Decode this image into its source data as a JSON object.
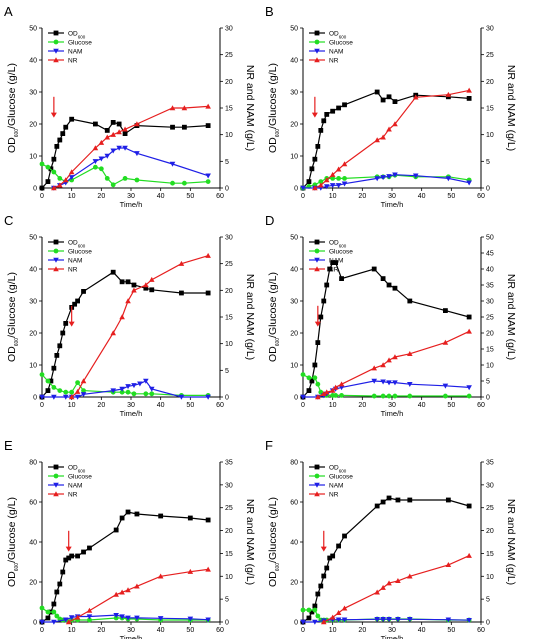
{
  "colors": {
    "od": "#000000",
    "glucose": "#22dd22",
    "nam": "#1f1fe6",
    "nr": "#e61f1f",
    "arrow": "#e61f1f"
  },
  "legend": {
    "od": "OD",
    "od_sub": "600",
    "glucose": "Glucose",
    "nam": "NAM",
    "nr": "NR"
  },
  "axis_text": {
    "y_left": "OD",
    "y_left_sub": "600",
    "y_left_rest": "/Glucose (g/L)",
    "y_right": "NR and NAM (g/L)",
    "x": "Time/h"
  },
  "chart_data": [
    {
      "type": "line",
      "panel": "A",
      "xlim": [
        0,
        60
      ],
      "xticks": [
        0,
        10,
        20,
        30,
        40,
        50,
        60
      ],
      "ylim_left": [
        0,
        50
      ],
      "yticks_left": [
        0,
        10,
        20,
        30,
        40,
        50
      ],
      "ylim_right": [
        0,
        30
      ],
      "yticks_right": [
        0,
        5,
        10,
        15,
        20,
        25,
        30
      ],
      "arrow_x": 4,
      "series": [
        {
          "name": "OD600",
          "axis": "left",
          "x": [
            0,
            2,
            3,
            4,
            5,
            6,
            7,
            8,
            10,
            18,
            22,
            24,
            26,
            28,
            32,
            44,
            48,
            56
          ],
          "y": [
            0,
            2,
            6,
            9,
            13,
            15,
            17,
            19,
            21.5,
            20,
            18,
            20.5,
            20,
            17,
            19.5,
            19,
            19,
            19.5
          ]
        },
        {
          "name": "Glucose",
          "axis": "left",
          "x": [
            0,
            2,
            4,
            6,
            8,
            10,
            18,
            20,
            22,
            24,
            28,
            32,
            44,
            48,
            56
          ],
          "y": [
            7.5,
            6.5,
            5,
            3,
            2,
            2.5,
            6.5,
            6,
            3,
            1,
            3,
            2.5,
            1.5,
            1.5,
            2
          ]
        },
        {
          "name": "NAM",
          "axis": "right",
          "x": [
            4,
            6,
            8,
            10,
            18,
            20,
            22,
            24,
            26,
            28,
            32,
            44,
            56
          ],
          "y": [
            0,
            0.5,
            1,
            2,
            5,
            5.5,
            6,
            7,
            7.5,
            7.5,
            6.5,
            4.5,
            2.3
          ]
        },
        {
          "name": "NR",
          "axis": "right",
          "x": [
            4,
            6,
            8,
            10,
            18,
            20,
            22,
            24,
            26,
            28,
            32,
            44,
            48,
            56
          ],
          "y": [
            0,
            0.5,
            1.5,
            3,
            7.5,
            8.5,
            9.5,
            10,
            10.5,
            11,
            12,
            15,
            15,
            15.3
          ]
        }
      ]
    },
    {
      "type": "line",
      "panel": "B",
      "xlim": [
        0,
        60
      ],
      "xticks": [
        0,
        10,
        20,
        30,
        40,
        50,
        60
      ],
      "ylim_left": [
        0,
        50
      ],
      "yticks_left": [
        0,
        10,
        20,
        30,
        40,
        50
      ],
      "ylim_right": [
        0,
        30
      ],
      "yticks_right": [
        0,
        5,
        10,
        15,
        20,
        25,
        30
      ],
      "arrow_x": 4,
      "series": [
        {
          "name": "OD600",
          "axis": "left",
          "x": [
            0,
            2,
            3,
            4,
            5,
            6,
            7,
            8,
            10,
            12,
            14,
            25,
            27,
            29,
            31,
            38,
            49,
            56
          ],
          "y": [
            0,
            2,
            6,
            9,
            13,
            18,
            21,
            23,
            24,
            25,
            26,
            30,
            27.5,
            28.5,
            27,
            29,
            28.5,
            28
          ]
        },
        {
          "name": "Glucose",
          "axis": "left",
          "x": [
            0,
            2,
            4,
            6,
            8,
            10,
            12,
            14,
            25,
            27,
            29,
            31,
            38,
            49,
            56
          ],
          "y": [
            0,
            0.5,
            1,
            2,
            3,
            3,
            3,
            3,
            3.5,
            3.5,
            3.5,
            4,
            3.5,
            3.5,
            2.5
          ]
        },
        {
          "name": "NAM",
          "axis": "right",
          "x": [
            0,
            4,
            6,
            8,
            10,
            12,
            14,
            25,
            27,
            29,
            31,
            38,
            49,
            56
          ],
          "y": [
            0,
            0,
            0,
            0.3,
            0.5,
            0.5,
            0.8,
            1.8,
            2,
            2.2,
            2.5,
            2.3,
            1.8,
            1
          ]
        },
        {
          "name": "NR",
          "axis": "right",
          "x": [
            4,
            6,
            8,
            10,
            12,
            14,
            25,
            27,
            29,
            31,
            38,
            49,
            56
          ],
          "y": [
            0,
            0.5,
            1.5,
            2.5,
            3.5,
            4.5,
            9,
            9.5,
            11,
            12,
            17,
            17.5,
            18.3
          ]
        }
      ]
    },
    {
      "type": "line",
      "panel": "C",
      "xlim": [
        0,
        60
      ],
      "xticks": [
        0,
        10,
        20,
        30,
        40,
        50,
        60
      ],
      "ylim_left": [
        0,
        50
      ],
      "yticks_left": [
        0,
        10,
        20,
        30,
        40,
        50
      ],
      "ylim_right": [
        0,
        30
      ],
      "yticks_right": [
        0,
        5,
        10,
        15,
        20,
        25,
        30
      ],
      "arrow_x": 10,
      "series": [
        {
          "name": "OD600",
          "axis": "left",
          "x": [
            0,
            2,
            3,
            4,
            5,
            6,
            7,
            8,
            10,
            11,
            12,
            14,
            24,
            27,
            29,
            31,
            35,
            37,
            47,
            56
          ],
          "y": [
            0,
            2,
            5,
            9,
            13,
            16,
            20,
            23,
            28,
            29,
            30,
            33,
            39,
            36,
            36,
            35,
            34,
            33.5,
            32.5,
            32.5
          ]
        },
        {
          "name": "Glucose",
          "axis": "left",
          "x": [
            0,
            2,
            4,
            6,
            8,
            10,
            12,
            14,
            24,
            27,
            29,
            31,
            35,
            37,
            47,
            56
          ],
          "y": [
            7,
            5,
            3,
            2,
            1.5,
            1.5,
            4.5,
            2,
            1.5,
            1.5,
            1.5,
            1,
            1,
            1,
            0.5,
            0.5
          ]
        },
        {
          "name": "NAM",
          "axis": "right",
          "x": [
            0,
            4,
            8,
            10,
            12,
            14,
            24,
            27,
            29,
            31,
            33,
            35,
            37,
            47,
            56
          ],
          "y": [
            0,
            0,
            0,
            0,
            0,
            0.5,
            1.2,
            1.5,
            2,
            2.2,
            2.5,
            3,
            1.5,
            0,
            0
          ]
        },
        {
          "name": "NR",
          "axis": "right",
          "x": [
            10,
            12,
            14,
            24,
            27,
            29,
            31,
            35,
            37,
            47,
            56
          ],
          "y": [
            0,
            1,
            3,
            12,
            15,
            18,
            20,
            21,
            22,
            25,
            26.5
          ]
        }
      ]
    },
    {
      "type": "line",
      "panel": "D",
      "xlim": [
        0,
        60
      ],
      "xticks": [
        0,
        10,
        20,
        30,
        40,
        50,
        60
      ],
      "ylim_left": [
        0,
        50
      ],
      "yticks_left": [
        0,
        10,
        20,
        30,
        40,
        50
      ],
      "ylim_right": [
        0,
        50
      ],
      "yticks_right": [
        0,
        5,
        10,
        15,
        20,
        25,
        30,
        35,
        40,
        45,
        50
      ],
      "arrow_x": 5,
      "series": [
        {
          "name": "OD600",
          "axis": "left",
          "x": [
            0,
            2,
            3,
            4,
            5,
            6,
            7,
            8,
            9,
            10,
            11,
            13,
            24,
            27,
            29,
            31,
            36,
            48,
            56
          ],
          "y": [
            0,
            2,
            5,
            10,
            17,
            25,
            30,
            35,
            40,
            42,
            42,
            37,
            40,
            37,
            35,
            34,
            30,
            27,
            25
          ]
        },
        {
          "name": "Glucose",
          "axis": "left",
          "x": [
            0,
            2,
            4,
            5,
            6,
            7,
            8,
            10,
            11,
            13,
            24,
            27,
            29,
            31,
            36,
            48,
            56
          ],
          "y": [
            7,
            6,
            6,
            4,
            1.5,
            0.8,
            0.5,
            0.5,
            0.5,
            0.5,
            0.3,
            0.3,
            0.3,
            0.3,
            0.3,
            0.3,
            0.3
          ]
        },
        {
          "name": "NAM",
          "axis": "right",
          "x": [
            0,
            5,
            7,
            8,
            10,
            11,
            13,
            24,
            27,
            29,
            31,
            36,
            48,
            56
          ],
          "y": [
            0,
            0,
            0.5,
            1,
            2,
            2.5,
            3,
            5,
            4.8,
            4.5,
            4.5,
            4,
            3.5,
            3
          ]
        },
        {
          "name": "NR",
          "axis": "right",
          "x": [
            5,
            7,
            8,
            10,
            11,
            13,
            24,
            27,
            29,
            31,
            36,
            48,
            56
          ],
          "y": [
            0,
            1,
            1.5,
            2,
            3,
            4,
            9,
            10,
            11.5,
            12.5,
            13.5,
            17,
            20.5
          ]
        }
      ]
    },
    {
      "type": "line",
      "panel": "E",
      "xlim": [
        0,
        60
      ],
      "xticks": [
        0,
        10,
        20,
        30,
        40,
        50,
        60
      ],
      "ylim_left": [
        0,
        80
      ],
      "yticks_left": [
        0,
        20,
        40,
        60,
        80
      ],
      "ylim_right": [
        0,
        35
      ],
      "yticks_right": [
        0,
        5,
        10,
        15,
        20,
        25,
        30,
        35
      ],
      "arrow_x": 9,
      "series": [
        {
          "name": "OD600",
          "axis": "left",
          "x": [
            0,
            2,
            3,
            4,
            5,
            6,
            7,
            8,
            9,
            10,
            12,
            14,
            16,
            25,
            27,
            29,
            32,
            40,
            50,
            56
          ],
          "y": [
            0,
            2,
            5,
            9,
            15,
            19,
            25,
            31,
            32,
            33,
            33,
            35,
            37,
            46,
            52,
            55,
            54,
            53,
            52,
            51
          ]
        },
        {
          "name": "Glucose",
          "axis": "left",
          "x": [
            0,
            2,
            4,
            5,
            6,
            7,
            8,
            10,
            12,
            16,
            25,
            27,
            29,
            32,
            40,
            50,
            56
          ],
          "y": [
            7,
            5,
            5,
            3,
            1.5,
            1,
            1,
            1,
            1,
            1,
            2,
            2,
            1.5,
            1.5,
            1,
            1,
            1
          ]
        },
        {
          "name": "NAM",
          "axis": "right",
          "x": [
            0,
            4,
            8,
            10,
            12,
            16,
            25,
            27,
            29,
            32,
            40,
            50,
            56
          ],
          "y": [
            0,
            0,
            0.5,
            1,
            1.2,
            1.2,
            1.5,
            1.2,
            0.9,
            0.9,
            0.8,
            0.7,
            0.5
          ]
        },
        {
          "name": "NR",
          "axis": "right",
          "x": [
            9,
            12,
            16,
            25,
            27,
            29,
            32,
            40,
            50,
            56
          ],
          "y": [
            0,
            1,
            2.5,
            6,
            6.5,
            7,
            7.8,
            10,
            11,
            11.5
          ]
        }
      ]
    },
    {
      "type": "line",
      "panel": "F",
      "xlim": [
        0,
        60
      ],
      "xticks": [
        0,
        10,
        20,
        30,
        40,
        50,
        60
      ],
      "ylim_left": [
        0,
        80
      ],
      "yticks_left": [
        0,
        20,
        40,
        60,
        80
      ],
      "ylim_right": [
        0,
        35
      ],
      "yticks_right": [
        0,
        5,
        10,
        15,
        20,
        25,
        30,
        35
      ],
      "arrow_x": 7,
      "series": [
        {
          "name": "OD600",
          "axis": "left",
          "x": [
            0,
            2,
            3,
            4,
            5,
            6,
            7,
            8,
            9,
            10,
            12,
            14,
            25,
            27,
            29,
            32,
            36,
            49,
            56
          ],
          "y": [
            0,
            2,
            5,
            8,
            14,
            18,
            23,
            27,
            32,
            33,
            38,
            43,
            58,
            60,
            62,
            61,
            61,
            61,
            58
          ]
        },
        {
          "name": "Glucose",
          "axis": "left",
          "x": [
            0,
            2,
            4,
            5,
            6,
            7,
            8,
            10,
            12,
            14,
            25,
            27,
            29,
            32,
            36,
            49,
            56
          ],
          "y": [
            6,
            6,
            6,
            3,
            1,
            1,
            1,
            1,
            1,
            1,
            1.5,
            1.5,
            1.5,
            1.5,
            1.5,
            1,
            1
          ]
        },
        {
          "name": "NAM",
          "axis": "right",
          "x": [
            0,
            4,
            7,
            10,
            12,
            14,
            25,
            27,
            29,
            32,
            36,
            49,
            56
          ],
          "y": [
            0,
            0,
            0.3,
            0.5,
            0.5,
            0.5,
            0.6,
            0.6,
            0.6,
            0.6,
            0.6,
            0.5,
            0.4
          ]
        },
        {
          "name": "NR",
          "axis": "right",
          "x": [
            7,
            10,
            12,
            14,
            25,
            27,
            29,
            32,
            36,
            49,
            56
          ],
          "y": [
            0,
            1,
            2,
            3,
            6.5,
            7.5,
            8.5,
            9,
            10,
            12.5,
            14.5
          ]
        }
      ]
    }
  ]
}
